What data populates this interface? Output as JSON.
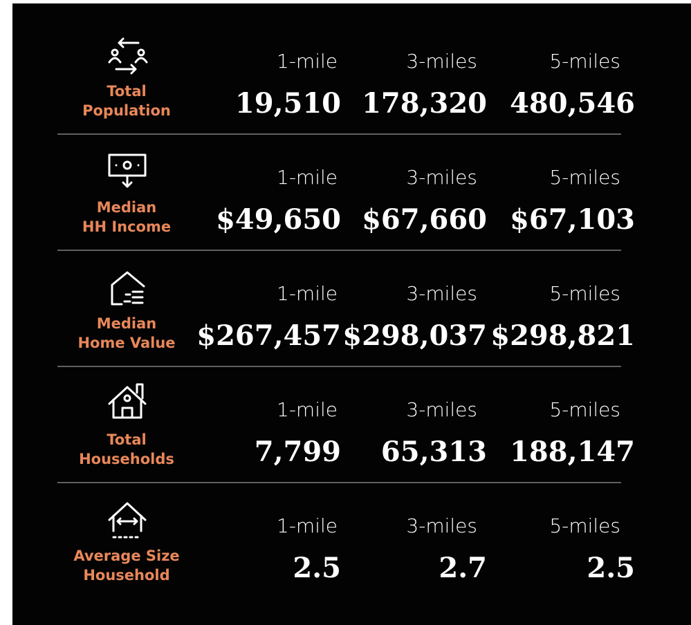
{
  "rows": [
    {
      "label": [
        "Total",
        "Population"
      ],
      "headers": [
        "1-mile",
        "3-miles",
        "5-miles"
      ],
      "values": [
        "19,510",
        "178,320",
        "480,546"
      ]
    },
    {
      "label": [
        "Median",
        "HH Income"
      ],
      "headers": [
        "1-mile",
        "3-miles",
        "5-miles"
      ],
      "values": [
        "$49,650",
        "$67,660",
        "$67,103"
      ]
    },
    {
      "label": [
        "Median",
        "Home Value"
      ],
      "headers": [
        "1-mile",
        "3-miles",
        "5-miles"
      ],
      "values": [
        "$267,457",
        "$298,037",
        "$298,821"
      ]
    },
    {
      "label": [
        "Total",
        "Households"
      ],
      "headers": [
        "1-mile",
        "3-miles",
        "5-miles"
      ],
      "values": [
        "7,799",
        "65,313",
        "188,147"
      ]
    },
    {
      "label": [
        "Average Size",
        "Household"
      ],
      "headers": [
        "1-mile",
        "3-miles",
        "5-miles"
      ],
      "values": [
        "2.5",
        "2.7",
        "2.5"
      ]
    }
  ]
}
